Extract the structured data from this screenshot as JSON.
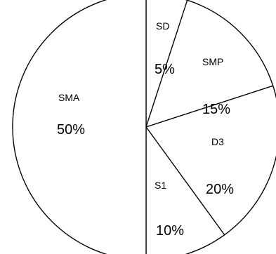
{
  "chart_data": {
    "type": "pie",
    "title": "",
    "categories": [
      "SD",
      "SMP",
      "D3",
      "S1",
      "SMA"
    ],
    "values": [
      5,
      15,
      20,
      10,
      50
    ],
    "value_labels": [
      "5%",
      "15%",
      "20%",
      "10%",
      "50%"
    ],
    "legend": "none",
    "colors": {
      "fill": "#ffffff",
      "stroke": "#000000"
    }
  }
}
